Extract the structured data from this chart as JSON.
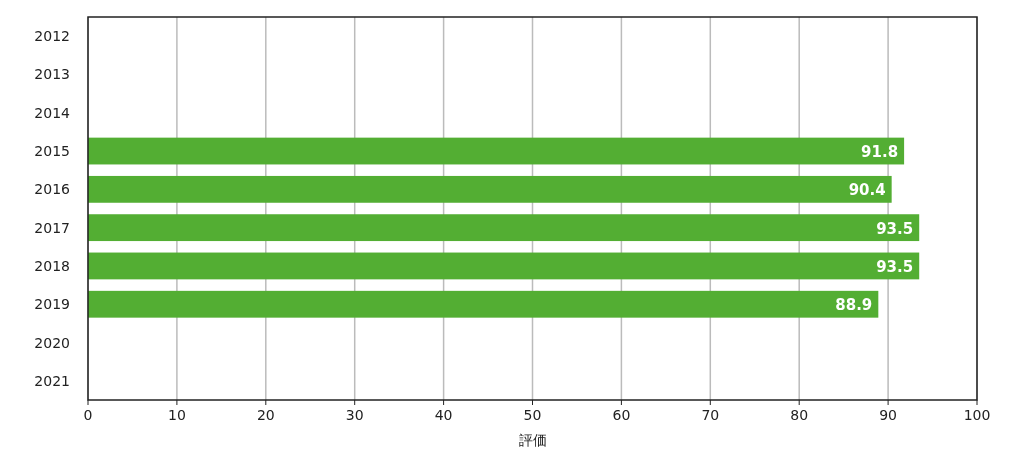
{
  "chart_data": {
    "type": "bar",
    "orientation": "horizontal",
    "categories": [
      "2012",
      "2013",
      "2014",
      "2015",
      "2016",
      "2017",
      "2018",
      "2019",
      "2020",
      "2021"
    ],
    "values": [
      null,
      null,
      null,
      91.8,
      90.4,
      93.5,
      93.5,
      88.9,
      null,
      null
    ],
    "color": "#53ae33",
    "xlim": [
      0,
      100
    ],
    "xticks": [
      0,
      10,
      20,
      30,
      40,
      50,
      60,
      70,
      80,
      90,
      100
    ],
    "xlabel": "評価",
    "grid": "x",
    "data_labels": true
  }
}
